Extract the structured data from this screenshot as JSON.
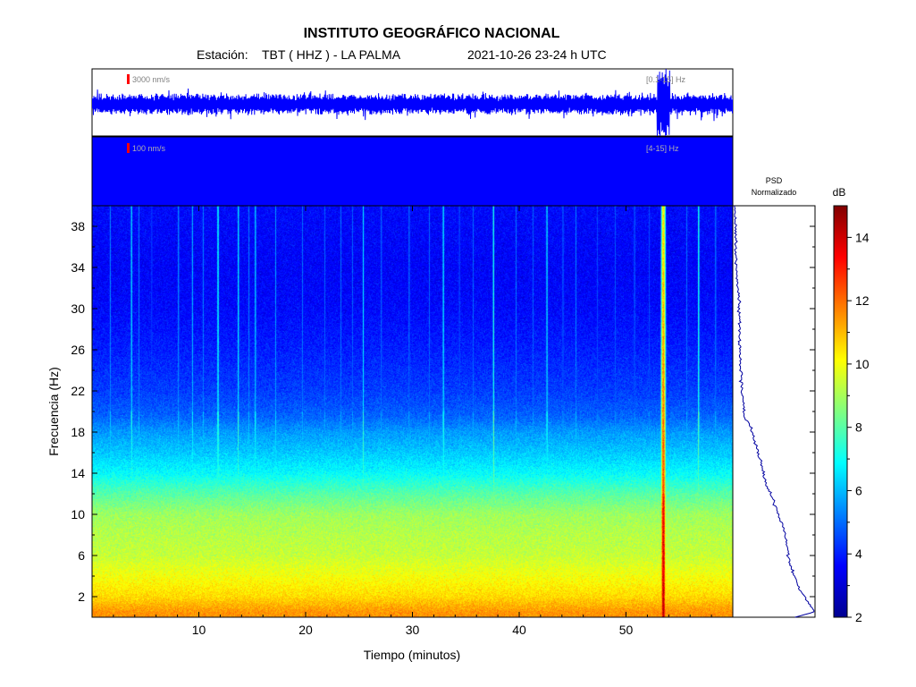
{
  "header": {
    "institute": "INSTITUTO GEOGRÁFICO NACIONAL",
    "station_prefix": "Estación:",
    "station": "TBT ( HHZ ) - LA PALMA",
    "datetime": "2021-10-26  23-24 h UTC"
  },
  "chart_data": [
    {
      "type": "line",
      "panel": "waveform-broadband",
      "scale_label": "3000 nm/s",
      "filter_label": "[0.1-15] Hz",
      "xlim": [
        0,
        60
      ],
      "notable_events": [
        {
          "t_min": 53.5,
          "description": "burst"
        }
      ]
    },
    {
      "type": "line",
      "panel": "waveform-filtered",
      "scale_label": "100 nm/s",
      "filter_label": "[4-15] Hz",
      "xlim": [
        0,
        60
      ],
      "saturated": true
    },
    {
      "type": "heatmap",
      "panel": "spectrogram",
      "xlabel": "Tiempo (minutos)",
      "ylabel": "Frecuencia (Hz)",
      "xlim": [
        0,
        60
      ],
      "ylim": [
        0,
        40
      ],
      "xticks": [
        10,
        20,
        30,
        40,
        50
      ],
      "yticks": [
        2,
        6,
        10,
        14,
        18,
        22,
        26,
        30,
        34,
        38
      ],
      "background_db_by_frequency": [
        {
          "freq": 0.5,
          "db": 11.5
        },
        {
          "freq": 2,
          "db": 10.6
        },
        {
          "freq": 4,
          "db": 10.0
        },
        {
          "freq": 6,
          "db": 9.4
        },
        {
          "freq": 8,
          "db": 9.2
        },
        {
          "freq": 10,
          "db": 8.9
        },
        {
          "freq": 12,
          "db": 8.0
        },
        {
          "freq": 14,
          "db": 6.9
        },
        {
          "freq": 16,
          "db": 6.2
        },
        {
          "freq": 18,
          "db": 5.6
        },
        {
          "freq": 19.5,
          "db": 4.9
        },
        {
          "freq": 22,
          "db": 4.4
        },
        {
          "freq": 26,
          "db": 4.0
        },
        {
          "freq": 30,
          "db": 3.7
        },
        {
          "freq": 34,
          "db": 3.6
        },
        {
          "freq": 40,
          "db": 3.7
        }
      ],
      "transient_events_min": [
        {
          "t": 1.7,
          "db": 6.6
        },
        {
          "t": 3.7,
          "db": 7.8
        },
        {
          "t": 4.4,
          "db": 6.4
        },
        {
          "t": 5.6,
          "db": 5.8
        },
        {
          "t": 8.1,
          "db": 6.8
        },
        {
          "t": 9.4,
          "db": 7.2
        },
        {
          "t": 10.4,
          "db": 6.5
        },
        {
          "t": 11.8,
          "db": 8.4
        },
        {
          "t": 13.7,
          "db": 8.0
        },
        {
          "t": 14.7,
          "db": 6.5
        },
        {
          "t": 15.3,
          "db": 7.6
        },
        {
          "t": 17.2,
          "db": 6.8
        },
        {
          "t": 19.7,
          "db": 6.2
        },
        {
          "t": 21.8,
          "db": 6.0
        },
        {
          "t": 23.3,
          "db": 6.2
        },
        {
          "t": 24.4,
          "db": 6.0
        },
        {
          "t": 25.4,
          "db": 7.9
        },
        {
          "t": 27.1,
          "db": 6.3
        },
        {
          "t": 29.7,
          "db": 6.4
        },
        {
          "t": 31.6,
          "db": 6.1
        },
        {
          "t": 32.9,
          "db": 7.9
        },
        {
          "t": 34.4,
          "db": 6.0
        },
        {
          "t": 35.7,
          "db": 6.1
        },
        {
          "t": 37.6,
          "db": 8.6
        },
        {
          "t": 39.7,
          "db": 6.3
        },
        {
          "t": 41.3,
          "db": 6.0
        },
        {
          "t": 42.6,
          "db": 7.8
        },
        {
          "t": 44.1,
          "db": 6.2
        },
        {
          "t": 45.3,
          "db": 6.5
        },
        {
          "t": 47.3,
          "db": 5.8
        },
        {
          "t": 49.0,
          "db": 5.8
        },
        {
          "t": 50.8,
          "db": 6.2
        },
        {
          "t": 52.2,
          "db": 5.9
        },
        {
          "t": 53.5,
          "db": 14.5
        },
        {
          "t": 55.7,
          "db": 6.2
        },
        {
          "t": 56.8,
          "db": 8.6
        },
        {
          "t": 58.4,
          "db": 6.5
        }
      ]
    },
    {
      "type": "line",
      "panel": "psd",
      "title_line1": "PSD",
      "title_line2": "Normalizado",
      "points": [
        {
          "freq": 0.0,
          "level": 0.76
        },
        {
          "freq": 0.5,
          "level": 1.0
        },
        {
          "freq": 1.5,
          "level": 0.92
        },
        {
          "freq": 3,
          "level": 0.8
        },
        {
          "freq": 5,
          "level": 0.7
        },
        {
          "freq": 7,
          "level": 0.66
        },
        {
          "freq": 9,
          "level": 0.6
        },
        {
          "freq": 11,
          "level": 0.5
        },
        {
          "freq": 13,
          "level": 0.4
        },
        {
          "freq": 15,
          "level": 0.33
        },
        {
          "freq": 17,
          "level": 0.26
        },
        {
          "freq": 18.5,
          "level": 0.2
        },
        {
          "freq": 19.5,
          "level": 0.12
        },
        {
          "freq": 22,
          "level": 0.09
        },
        {
          "freq": 26,
          "level": 0.07
        },
        {
          "freq": 30,
          "level": 0.06
        },
        {
          "freq": 34,
          "level": 0.02
        },
        {
          "freq": 38,
          "level": 0.01
        },
        {
          "freq": 40,
          "level": 0.0
        }
      ]
    },
    {
      "type": "heatmap",
      "panel": "colorbar",
      "label": "dB",
      "range": [
        2,
        15
      ],
      "ticks": [
        2,
        4,
        6,
        8,
        10,
        12,
        14
      ]
    }
  ]
}
